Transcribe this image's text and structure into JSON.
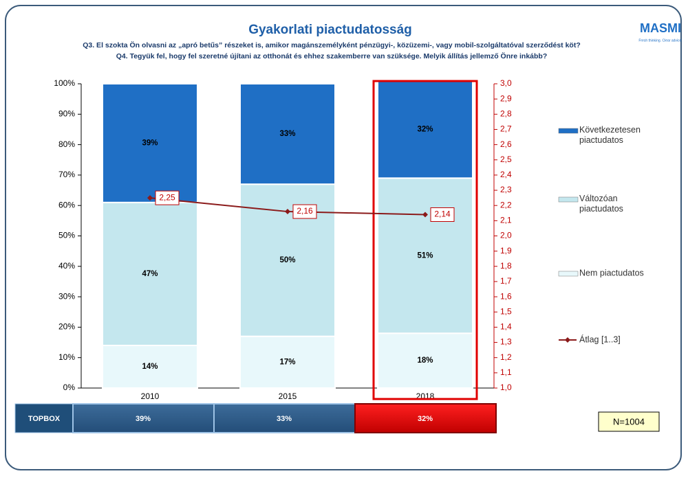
{
  "chart_data": {
    "type": "stacked_bar_line",
    "title": "Gyakorlati piactudatosság",
    "subtitle": [
      "Q3. El szokta Ön olvasni az „apró betűs” részeket is, amikor magánszemélyként pénzügyi-, közüzemi-, vagy mobil-szolgáltatóval szerződést köt?",
      "Q4. Tegyük fel, hogy fel szeretné újítani az otthonát és ehhez szakemberre van szüksége. Melyik állítás jellemző Önre inkább?"
    ],
    "categories": [
      "2010",
      "2015",
      "2018"
    ],
    "series": [
      {
        "name": "Nem piactudatos",
        "color": "#e8f8fb",
        "values": [
          14,
          17,
          18
        ],
        "value_labels": [
          "14%",
          "17%",
          "18%"
        ]
      },
      {
        "name": "Változóan piactudatos",
        "color": "#c4e7ee",
        "values": [
          47,
          50,
          51
        ],
        "value_labels": [
          "47%",
          "50%",
          "51%"
        ]
      },
      {
        "name": "Következetesen piactudatos",
        "color": "#1f6fc5",
        "values": [
          39,
          33,
          32
        ],
        "value_labels": [
          "39%",
          "33%",
          "32%"
        ]
      },
      {
        "name": "Átlag [1..3]",
        "color": "#8b1a1a",
        "axis": "y2",
        "values": [
          2.25,
          2.16,
          2.14
        ],
        "value_labels": [
          "2,25",
          "2,16",
          "2,14"
        ]
      }
    ],
    "ylim": [
      0,
      100
    ],
    "yticks": [
      {
        "value": 0,
        "label": "0%"
      },
      {
        "value": 10,
        "label": "10%"
      },
      {
        "value": 20,
        "label": "20%"
      },
      {
        "value": 30,
        "label": "30%"
      },
      {
        "value": 40,
        "label": "40%"
      },
      {
        "value": 50,
        "label": "50%"
      },
      {
        "value": 60,
        "label": "60%"
      },
      {
        "value": 70,
        "label": "70%"
      },
      {
        "value": 80,
        "label": "80%"
      },
      {
        "value": 90,
        "label": "90%"
      },
      {
        "value": 100,
        "label": "100%"
      }
    ],
    "y2lim": [
      1,
      3
    ],
    "y2ticks": [
      {
        "value": 1.0,
        "label": "1,0"
      },
      {
        "value": 1.1,
        "label": "1,1"
      },
      {
        "value": 1.2,
        "label": "1,2"
      },
      {
        "value": 1.3,
        "label": "1,3"
      },
      {
        "value": 1.4,
        "label": "1,4"
      },
      {
        "value": 1.5,
        "label": "1,5"
      },
      {
        "value": 1.6,
        "label": "1,6"
      },
      {
        "value": 1.7,
        "label": "1,7"
      },
      {
        "value": 1.8,
        "label": "1,8"
      },
      {
        "value": 1.9,
        "label": "1,9"
      },
      {
        "value": 2.0,
        "label": "2,0"
      },
      {
        "value": 2.1,
        "label": "2,1"
      },
      {
        "value": 2.2,
        "label": "2,2"
      },
      {
        "value": 2.3,
        "label": "2,3"
      },
      {
        "value": 2.4,
        "label": "2,4"
      },
      {
        "value": 2.5,
        "label": "2,5"
      },
      {
        "value": 2.6,
        "label": "2,6"
      },
      {
        "value": 2.7,
        "label": "2,7"
      },
      {
        "value": 2.8,
        "label": "2,8"
      },
      {
        "value": 2.9,
        "label": "2,9"
      },
      {
        "value": 3.0,
        "label": "3,0"
      }
    ],
    "y2_color": "#c00000",
    "legend": "right"
  },
  "logo": {
    "name": "MASMI",
    "tagline": "Fresh thinking. Clear advice."
  },
  "topbox": {
    "label": "TOPBOX",
    "cells": [
      "39%",
      "33%",
      "32%"
    ]
  },
  "note": "N=1004"
}
